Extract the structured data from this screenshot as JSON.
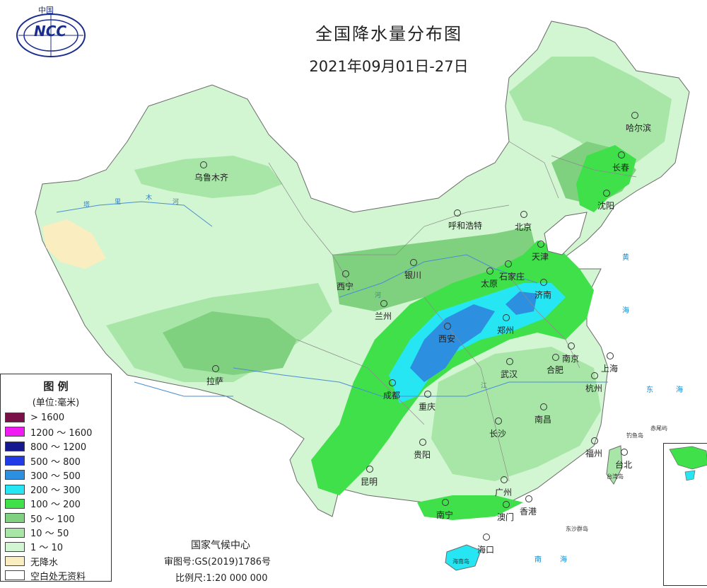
{
  "map": {
    "title": "全国降水量分布图",
    "date_range": "2021年09月01日-27日"
  },
  "logo": {
    "label": "中国",
    "text": "NCC"
  },
  "legend": {
    "title": "图 例",
    "unit": "(单位:毫米)",
    "items": [
      {
        "label": "> 1600",
        "color": "#7a1048"
      },
      {
        "label": "1200 ～ 1600",
        "color": "#f21af2"
      },
      {
        "label": "800 ～ 1200",
        "color": "#16188f"
      },
      {
        "label": "500 ～ 800",
        "color": "#1f3ae6"
      },
      {
        "label": "300 ～ 500",
        "color": "#2d8fe0"
      },
      {
        "label": "200 ～ 300",
        "color": "#25e6f2"
      },
      {
        "label": "100 ～ 200",
        "color": "#3fe04a"
      },
      {
        "label": "50 ～ 100",
        "color": "#7fd17f"
      },
      {
        "label": "10 ～ 50",
        "color": "#a8e6a8"
      },
      {
        "label": "1 ～ 10",
        "color": "#d2f5d2"
      },
      {
        "label": "无降水",
        "color": "#faedc0"
      },
      {
        "label": "空白处无资料",
        "color": "#ffffff"
      }
    ]
  },
  "cities": [
    {
      "name": "哈尔滨"
    },
    {
      "name": "长春"
    },
    {
      "name": "沈阳"
    },
    {
      "name": "乌鲁木齐"
    },
    {
      "name": "呼和浩特"
    },
    {
      "name": "北京"
    },
    {
      "name": "天津"
    },
    {
      "name": "石家庄"
    },
    {
      "name": "太原"
    },
    {
      "name": "济南"
    },
    {
      "name": "银川"
    },
    {
      "name": "西宁"
    },
    {
      "name": "兰州"
    },
    {
      "name": "郑州"
    },
    {
      "name": "西安"
    },
    {
      "name": "南京"
    },
    {
      "name": "合肥"
    },
    {
      "name": "上海"
    },
    {
      "name": "武汉"
    },
    {
      "name": "杭州"
    },
    {
      "name": "拉萨"
    },
    {
      "name": "成都"
    },
    {
      "name": "重庆"
    },
    {
      "name": "长沙"
    },
    {
      "name": "南昌"
    },
    {
      "name": "贵阳"
    },
    {
      "name": "福州"
    },
    {
      "name": "台北"
    },
    {
      "name": "昆明"
    },
    {
      "name": "广州"
    },
    {
      "name": "南宁"
    },
    {
      "name": "澳门"
    },
    {
      "name": "香港"
    },
    {
      "name": "海口"
    }
  ],
  "seas": [
    "黄",
    "海",
    "东",
    "海",
    "南",
    "海"
  ],
  "islands": [
    "台湾岛",
    "海南岛",
    "东沙群岛",
    "钓鱼岛",
    "赤尾屿"
  ],
  "rivers": [
    "塔",
    "里",
    "木",
    "河",
    "河",
    "江"
  ],
  "footer": {
    "org": "国家气候中心",
    "approval": "审图号:GS(2019)1786号",
    "scale": "比例尺:1:20 000 000"
  },
  "colors": {
    "light": "#d2f5d2",
    "low": "#a8e6a8",
    "mid": "#7fd17f",
    "high": "#3fe04a",
    "cyan": "#25e6f2",
    "blue": "#2d8fe0",
    "dry": "#faedc0"
  }
}
